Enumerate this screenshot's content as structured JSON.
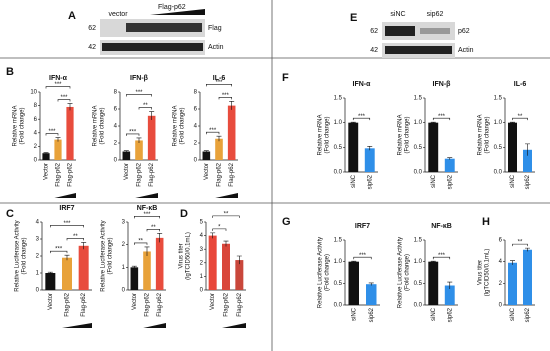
{
  "panels": [
    "A",
    "B",
    "C",
    "D",
    "E",
    "F",
    "G",
    "H"
  ],
  "blot_a": {
    "lanes": [
      "vector",
      "Flag-p62"
    ],
    "markers": [
      "62",
      "42"
    ],
    "bands": [
      "Flag",
      "Actin"
    ]
  },
  "blot_e": {
    "lanes": [
      "siNC",
      "sip62"
    ],
    "markers": [
      "62",
      "42"
    ],
    "bands": [
      "p62",
      "Actin"
    ]
  },
  "chart_data": [
    {
      "type": "bar",
      "title": "IFN-α",
      "ylabel": [
        "Relative mRNA",
        "(Fold change)"
      ],
      "categories": [
        "Vector",
        "Flag-p62",
        "Flag-p62"
      ],
      "values": [
        1,
        3.0,
        7.8
      ],
      "errors": [
        0.1,
        0.3,
        0.5
      ],
      "colors": [
        "#111111",
        "#e8a23a",
        "#e84c3d"
      ],
      "ylim": [
        0,
        10
      ],
      "yticks": [
        0,
        2,
        4,
        6,
        8,
        10
      ],
      "annotations": [
        "***",
        "***",
        "***"
      ]
    },
    {
      "type": "bar",
      "title": "IFN-β",
      "ylabel": [
        "Relative mRNA",
        "(Fold change)"
      ],
      "categories": [
        "Vector",
        "Flag-p62",
        "Flag-p62"
      ],
      "values": [
        1,
        2.3,
        5.2
      ],
      "errors": [
        0.1,
        0.3,
        0.5
      ],
      "colors": [
        "#111111",
        "#e8a23a",
        "#e84c3d"
      ],
      "ylim": [
        0,
        8
      ],
      "yticks": [
        0,
        2,
        4,
        6,
        8
      ],
      "annotations": [
        "***",
        "**",
        "***"
      ]
    },
    {
      "type": "bar",
      "title": "IL-6",
      "ylabel": [
        "Relative mRNA",
        "(Fold change)"
      ],
      "categories": [
        "Vector",
        "Flag-p62",
        "Flag-p62"
      ],
      "values": [
        1,
        2.5,
        6.4
      ],
      "errors": [
        0.1,
        0.3,
        0.5
      ],
      "colors": [
        "#111111",
        "#e8a23a",
        "#e84c3d"
      ],
      "ylim": [
        0,
        8
      ],
      "yticks": [
        0,
        2,
        4,
        6,
        8
      ],
      "annotations": [
        "***",
        "***",
        "***"
      ]
    },
    {
      "type": "bar",
      "title": "IRF7",
      "ylabel": [
        "Relative Luciferase Activity",
        "(Fold change)"
      ],
      "categories": [
        "Vector",
        "Flag-p62",
        "Flag-p62"
      ],
      "values": [
        1,
        1.9,
        2.6
      ],
      "errors": [
        0.05,
        0.15,
        0.2
      ],
      "colors": [
        "#111111",
        "#e8a23a",
        "#e84c3d"
      ],
      "ylim": [
        0,
        4
      ],
      "yticks": [
        0,
        1,
        2,
        3,
        4
      ],
      "annotations": [
        "***",
        "**",
        "***"
      ]
    },
    {
      "type": "bar",
      "title": "NF-κB",
      "ylabel": [
        "Relative Luciferase Activity",
        "(Fold change)"
      ],
      "categories": [
        "Vector",
        "Flag-p62",
        "Flag-p62"
      ],
      "values": [
        1,
        1.7,
        2.3
      ],
      "errors": [
        0.05,
        0.2,
        0.2
      ],
      "colors": [
        "#111111",
        "#e8a23a",
        "#e84c3d"
      ],
      "ylim": [
        0,
        3
      ],
      "yticks": [
        0,
        1,
        2,
        3
      ],
      "annotations": [
        "**",
        "**",
        "***"
      ]
    },
    {
      "type": "bar",
      "title": "",
      "ylabel": [
        "Virus titer",
        "(lgTCID50/0.1mL)"
      ],
      "categories": [
        "Vector",
        "Flag-p62",
        "Flag-p62"
      ],
      "values": [
        4.0,
        3.4,
        2.2
      ],
      "errors": [
        0.2,
        0.2,
        0.3
      ],
      "colors": [
        "#e8473a",
        "#d9463a",
        "#c9473b"
      ],
      "ylim": [
        0,
        5
      ],
      "yticks": [
        0,
        1,
        2,
        3,
        4,
        5
      ],
      "annotations": [
        "*",
        "**"
      ]
    },
    {
      "type": "bar",
      "title": "IFN-α",
      "ylabel": [
        "Relative mRNA",
        "(Fold change)"
      ],
      "categories": [
        "siNC",
        "sip62"
      ],
      "values": [
        1,
        0.48
      ],
      "errors": [
        0.01,
        0.04
      ],
      "colors": [
        "#111111",
        "#2f8fe8"
      ],
      "ylim": [
        0,
        1.5
      ],
      "yticks": [
        {
          "value": 0,
          "label": "0.0"
        },
        0.5,
        {
          "value": 1,
          "label": "1.0"
        },
        1.5
      ],
      "annotations": [
        "***"
      ]
    },
    {
      "type": "bar",
      "title": "IFN-β",
      "ylabel": [
        "Relative mRNA",
        "(Fold change)"
      ],
      "categories": [
        "siNC",
        "sip62"
      ],
      "values": [
        1,
        0.27
      ],
      "errors": [
        0.01,
        0.02
      ],
      "colors": [
        "#111111",
        "#2f8fe8"
      ],
      "ylim": [
        0,
        1.5
      ],
      "yticks": [
        {
          "value": 0,
          "label": "0.0"
        },
        0.5,
        {
          "value": 1,
          "label": "1.0"
        },
        1.5
      ],
      "annotations": [
        "***"
      ]
    },
    {
      "type": "bar",
      "title": "IL-6",
      "ylabel": [
        "Relative mRNA",
        "(Fold change)"
      ],
      "categories": [
        "siNC",
        "sip62"
      ],
      "values": [
        1,
        0.45
      ],
      "errors": [
        0.01,
        0.12
      ],
      "colors": [
        "#111111",
        "#2f8fe8"
      ],
      "ylim": [
        0,
        1.5
      ],
      "yticks": [
        {
          "value": 0,
          "label": "0.0"
        },
        0.5,
        {
          "value": 1,
          "label": "1.0"
        },
        1.5
      ],
      "annotations": [
        "**"
      ]
    },
    {
      "type": "bar",
      "title": "IRF7",
      "ylabel": [
        "Relative Luciferase Activity",
        "(Fold change)"
      ],
      "categories": [
        "siNC",
        "sip62"
      ],
      "values": [
        1,
        0.48
      ],
      "errors": [
        0.01,
        0.03
      ],
      "colors": [
        "#111111",
        "#2f8fe8"
      ],
      "ylim": [
        0,
        1.5
      ],
      "yticks": [
        {
          "value": 0,
          "label": "0.0"
        },
        0.5,
        {
          "value": 1,
          "label": "1.0"
        },
        1.5
      ],
      "annotations": [
        "***"
      ]
    },
    {
      "type": "bar",
      "title": "NF-κB",
      "ylabel": [
        "Relative Luciferase Activity",
        "(Fold change)"
      ],
      "categories": [
        "siNC",
        "sip62"
      ],
      "values": [
        1,
        0.45
      ],
      "errors": [
        0.01,
        0.08
      ],
      "colors": [
        "#111111",
        "#2f8fe8"
      ],
      "ylim": [
        0,
        1.5
      ],
      "yticks": [
        {
          "value": 0,
          "label": "0.0"
        },
        0.5,
        {
          "value": 1,
          "label": "1.0"
        },
        1.5
      ],
      "annotations": [
        "***"
      ]
    },
    {
      "type": "bar",
      "title": "",
      "ylabel": [
        "Virus titer",
        "(lgTCID50/0.1mL)"
      ],
      "categories": [
        "siNC",
        "sip62"
      ],
      "values": [
        3.9,
        5.1
      ],
      "errors": [
        0.2,
        0.15
      ],
      "colors": [
        "#2f8fe8",
        "#2f8fe8"
      ],
      "ylim": [
        0,
        6
      ],
      "yticks": [
        0,
        2,
        4,
        6
      ],
      "annotations": [
        "**"
      ]
    }
  ]
}
